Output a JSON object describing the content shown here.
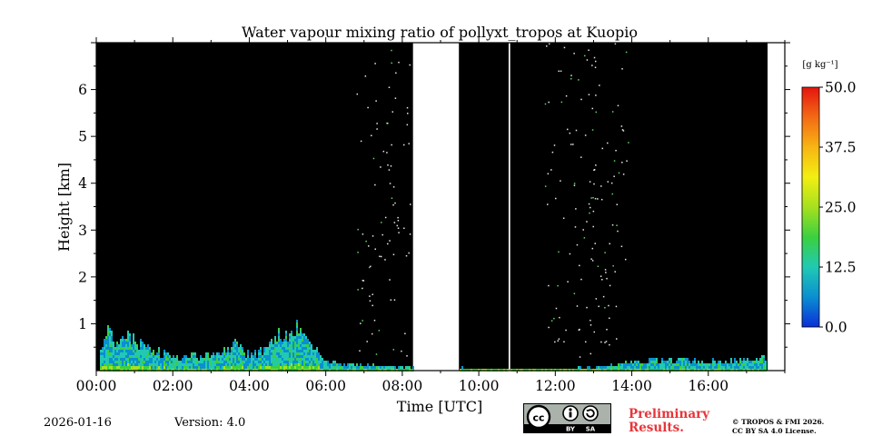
{
  "chart_data": {
    "type": "heatmap",
    "title": "Water vapour mixing ratio of pollyxt_tropos at Kuopio",
    "xlabel": "Time [UTC]",
    "ylabel": "Height [km]",
    "xlim_hours": [
      0,
      18
    ],
    "ylim_km": [
      0,
      7
    ],
    "x_ticks": [
      {
        "h": 0,
        "label": "00:00"
      },
      {
        "h": 2,
        "label": "02:00"
      },
      {
        "h": 4,
        "label": "04:00"
      },
      {
        "h": 6,
        "label": "06:00"
      },
      {
        "h": 8,
        "label": "08:00"
      },
      {
        "h": 10,
        "label": "10:00"
      },
      {
        "h": 12,
        "label": "12:00"
      },
      {
        "h": 14,
        "label": "14:00"
      },
      {
        "h": 16,
        "label": "16:00"
      }
    ],
    "y_ticks": [
      {
        "km": 1,
        "label": "1"
      },
      {
        "km": 2,
        "label": "2"
      },
      {
        "km": 3,
        "label": "3"
      },
      {
        "km": 4,
        "label": "4"
      },
      {
        "km": 5,
        "label": "5"
      },
      {
        "km": 6,
        "label": "6"
      }
    ],
    "no_data_periods_hours": [
      [
        8.28,
        9.48
      ],
      [
        10.78,
        10.82
      ],
      [
        17.55,
        18
      ]
    ],
    "low_layer_top_km": [
      {
        "h": 0.05,
        "km": 0.6
      },
      {
        "h": 0.3,
        "km": 0.8
      },
      {
        "h": 0.6,
        "km": 0.6
      },
      {
        "h": 0.9,
        "km": 0.75
      },
      {
        "h": 1.2,
        "km": 0.5
      },
      {
        "h": 1.6,
        "km": 0.45
      },
      {
        "h": 2.0,
        "km": 0.3
      },
      {
        "h": 2.4,
        "km": 0.35
      },
      {
        "h": 2.8,
        "km": 0.3
      },
      {
        "h": 3.2,
        "km": 0.45
      },
      {
        "h": 3.6,
        "km": 0.55
      },
      {
        "h": 4.0,
        "km": 0.35
      },
      {
        "h": 4.4,
        "km": 0.45
      },
      {
        "h": 4.8,
        "km": 0.8
      },
      {
        "h": 5.2,
        "km": 0.9
      },
      {
        "h": 5.6,
        "km": 0.6
      },
      {
        "h": 6.0,
        "km": 0.2
      },
      {
        "h": 6.5,
        "km": 0.18
      },
      {
        "h": 7.0,
        "km": 0.15
      },
      {
        "h": 7.5,
        "km": 0.12
      },
      {
        "h": 8.0,
        "km": 0.12
      },
      {
        "h": 8.25,
        "km": 0.1
      },
      {
        "h": 11.5,
        "km": 0.05
      },
      {
        "h": 12.5,
        "km": 0.08
      },
      {
        "h": 13.5,
        "km": 0.15
      },
      {
        "h": 14.5,
        "km": 0.25
      },
      {
        "h": 15.5,
        "km": 0.25
      },
      {
        "h": 16.5,
        "km": 0.22
      },
      {
        "h": 17.5,
        "km": 0.3
      }
    ],
    "colorbar": {
      "unit_label": "[g kg⁻¹]",
      "min": 0,
      "max": 50,
      "ticks": [
        {
          "v": 0,
          "label": "0.0"
        },
        {
          "v": 12.5,
          "label": "12.5"
        },
        {
          "v": 25,
          "label": "25.0"
        },
        {
          "v": 37.5,
          "label": "37.5"
        },
        {
          "v": 50,
          "label": "50.0"
        }
      ],
      "colors": [
        "#0b2fd8",
        "#0a8fd1",
        "#21c9b3",
        "#3bd03f",
        "#a6e01e",
        "#f2ef12",
        "#f7b513",
        "#f36a14",
        "#e4150e"
      ]
    }
  },
  "footer": {
    "date": "2026-01-16",
    "version": "Version: 4.0",
    "preliminary": "Preliminary\nResults.",
    "copyright_line1": "© TROPOS & FMI 2026.",
    "copyright_line2": "CC BY SA 4.0 License.",
    "cc_badge": {
      "cc": "cc",
      "by": "BY",
      "sa": "SA"
    }
  }
}
